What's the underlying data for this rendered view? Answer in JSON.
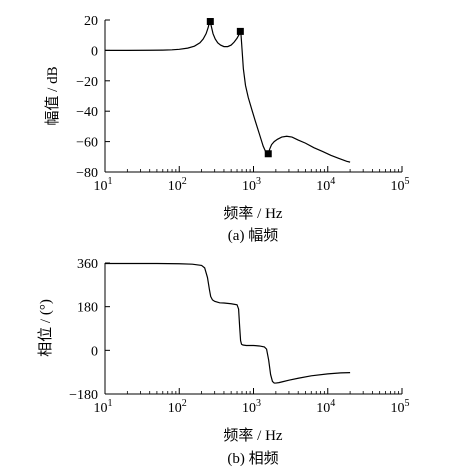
{
  "chart_data": [
    {
      "type": "line",
      "xscale": "log",
      "xlim": [
        10,
        100000
      ],
      "ylim": [
        -80,
        20
      ],
      "x_ticks": [
        {
          "base": "10",
          "exp": "1"
        },
        {
          "base": "10",
          "exp": "2"
        },
        {
          "base": "10",
          "exp": "3"
        },
        {
          "base": "10",
          "exp": "4"
        },
        {
          "base": "10",
          "exp": "5"
        }
      ],
      "y_ticks": [
        "20",
        "0",
        "−20",
        "−40",
        "−60",
        "−80"
      ],
      "y_tick_values": [
        20,
        0,
        -20,
        -40,
        -60,
        -80
      ],
      "xlabel": "频率 / Hz",
      "ylabel": "幅值 / dB",
      "caption": "(a)  幅频",
      "series": [
        {
          "x": [
            10,
            20,
            40,
            60,
            80,
            100,
            130,
            160,
            190,
            210,
            230,
            245,
            255,
            262,
            270,
            285,
            305,
            330,
            360,
            400,
            450,
            500,
            550,
            600,
            640,
            665,
            680,
            700,
            730,
            780,
            850,
            950,
            1050,
            1200,
            1350,
            1500,
            1580,
            1650,
            1750,
            1900,
            2100,
            2400,
            2800,
            3300,
            4000,
            5000,
            6500,
            8500,
            11000,
            14000,
            18000,
            20000
          ],
          "y": [
            0,
            0,
            0.1,
            0.2,
            0.4,
            0.7,
            1.5,
            2.8,
            5,
            7.5,
            11,
            15,
            18.5,
            19,
            16,
            11,
            7.5,
            5,
            3.5,
            2.5,
            2.5,
            3.5,
            5.5,
            8,
            10.5,
            12.5,
            10,
            1,
            -12,
            -23,
            -31,
            -39,
            -46,
            -55,
            -63,
            -68,
            -68,
            -65,
            -62,
            -60,
            -58.5,
            -57,
            -56.5,
            -57,
            -59,
            -61,
            -64,
            -66.5,
            -69,
            -71,
            -73,
            -73.5
          ]
        }
      ],
      "markers": [
        {
          "x": 262,
          "y": 19
        },
        {
          "x": 665,
          "y": 12.5
        },
        {
          "x": 1580,
          "y": -68
        }
      ]
    },
    {
      "type": "line",
      "xscale": "log",
      "xlim": [
        10,
        100000
      ],
      "ylim": [
        -180,
        360
      ],
      "x_ticks": [
        {
          "base": "10",
          "exp": "1"
        },
        {
          "base": "10",
          "exp": "2"
        },
        {
          "base": "10",
          "exp": "3"
        },
        {
          "base": "10",
          "exp": "4"
        },
        {
          "base": "10",
          "exp": "5"
        }
      ],
      "y_ticks": [
        "360",
        "180",
        "0",
        "−180"
      ],
      "y_tick_values": [
        360,
        180,
        0,
        -180
      ],
      "xlabel": "频率 / Hz",
      "ylabel": "相位 / (°)",
      "caption": "(b)  相频",
      "series": [
        {
          "x": [
            10,
            50,
            100,
            150,
            200,
            220,
            240,
            255,
            265,
            280,
            300,
            350,
            400,
            500,
            600,
            630,
            650,
            670,
            690,
            720,
            800,
            1000,
            1200,
            1400,
            1500,
            1600,
            1700,
            1800,
            1900,
            2000,
            2200,
            2500,
            3000,
            4000,
            6000,
            10000,
            15000,
            20000
          ],
          "y": [
            358,
            358,
            357,
            355,
            350,
            340,
            300,
            250,
            222,
            208,
            202,
            196,
            195,
            192,
            188,
            170,
            100,
            40,
            25,
            22,
            20,
            20,
            18,
            14,
            5,
            -40,
            -100,
            -128,
            -135,
            -135,
            -133,
            -129,
            -123,
            -115,
            -105,
            -97,
            -93,
            -92
          ]
        }
      ]
    }
  ]
}
